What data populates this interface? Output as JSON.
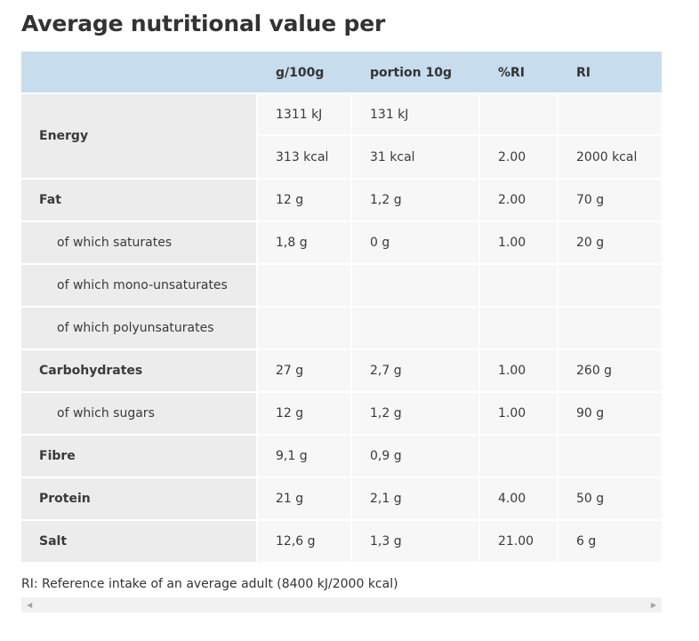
{
  "title": "Average nutritional value per",
  "headers": [
    "",
    "g/100g",
    "portion 10g",
    "%RI",
    "RI"
  ],
  "energy": {
    "label": "Energy",
    "kj": {
      "g100": "1311 kJ",
      "portion": "131 kJ",
      "ri_pct": "",
      "ri": ""
    },
    "kcal": {
      "g100": "313 kcal",
      "portion": "31 kcal",
      "ri_pct": "2.00",
      "ri": "2000 kcal"
    }
  },
  "rows": [
    {
      "label": "Fat",
      "sub": false,
      "g100": "12 g",
      "portion": "1,2 g",
      "ri_pct": "2.00",
      "ri": "70 g"
    },
    {
      "label": "of which saturates",
      "sub": true,
      "g100": "1,8 g",
      "portion": "0 g",
      "ri_pct": "1.00",
      "ri": "20 g"
    },
    {
      "label": "of which mono-unsaturates",
      "sub": true,
      "g100": "",
      "portion": "",
      "ri_pct": "",
      "ri": ""
    },
    {
      "label": "of which polyunsaturates",
      "sub": true,
      "g100": "",
      "portion": "",
      "ri_pct": "",
      "ri": ""
    },
    {
      "label": "Carbohydrates",
      "sub": false,
      "g100": "27 g",
      "portion": "2,7 g",
      "ri_pct": "1.00",
      "ri": "260 g"
    },
    {
      "label": "of which sugars",
      "sub": true,
      "g100": "12 g",
      "portion": "1,2 g",
      "ri_pct": "1.00",
      "ri": "90 g"
    },
    {
      "label": "Fibre",
      "sub": false,
      "g100": "9,1 g",
      "portion": "0,9 g",
      "ri_pct": "",
      "ri": ""
    },
    {
      "label": "Protein",
      "sub": false,
      "g100": "21 g",
      "portion": "2,1 g",
      "ri_pct": "4.00",
      "ri": "50 g"
    },
    {
      "label": "Salt",
      "sub": false,
      "g100": "12,6 g",
      "portion": "1,3 g",
      "ri_pct": "21.00",
      "ri": "6 g"
    }
  ],
  "footnote": "RI: Reference intake of an average adult (8400 kJ/2000 kcal)",
  "scrollbar": {
    "left_icon": "arrow-left-icon",
    "right_icon": "arrow-right-icon"
  }
}
